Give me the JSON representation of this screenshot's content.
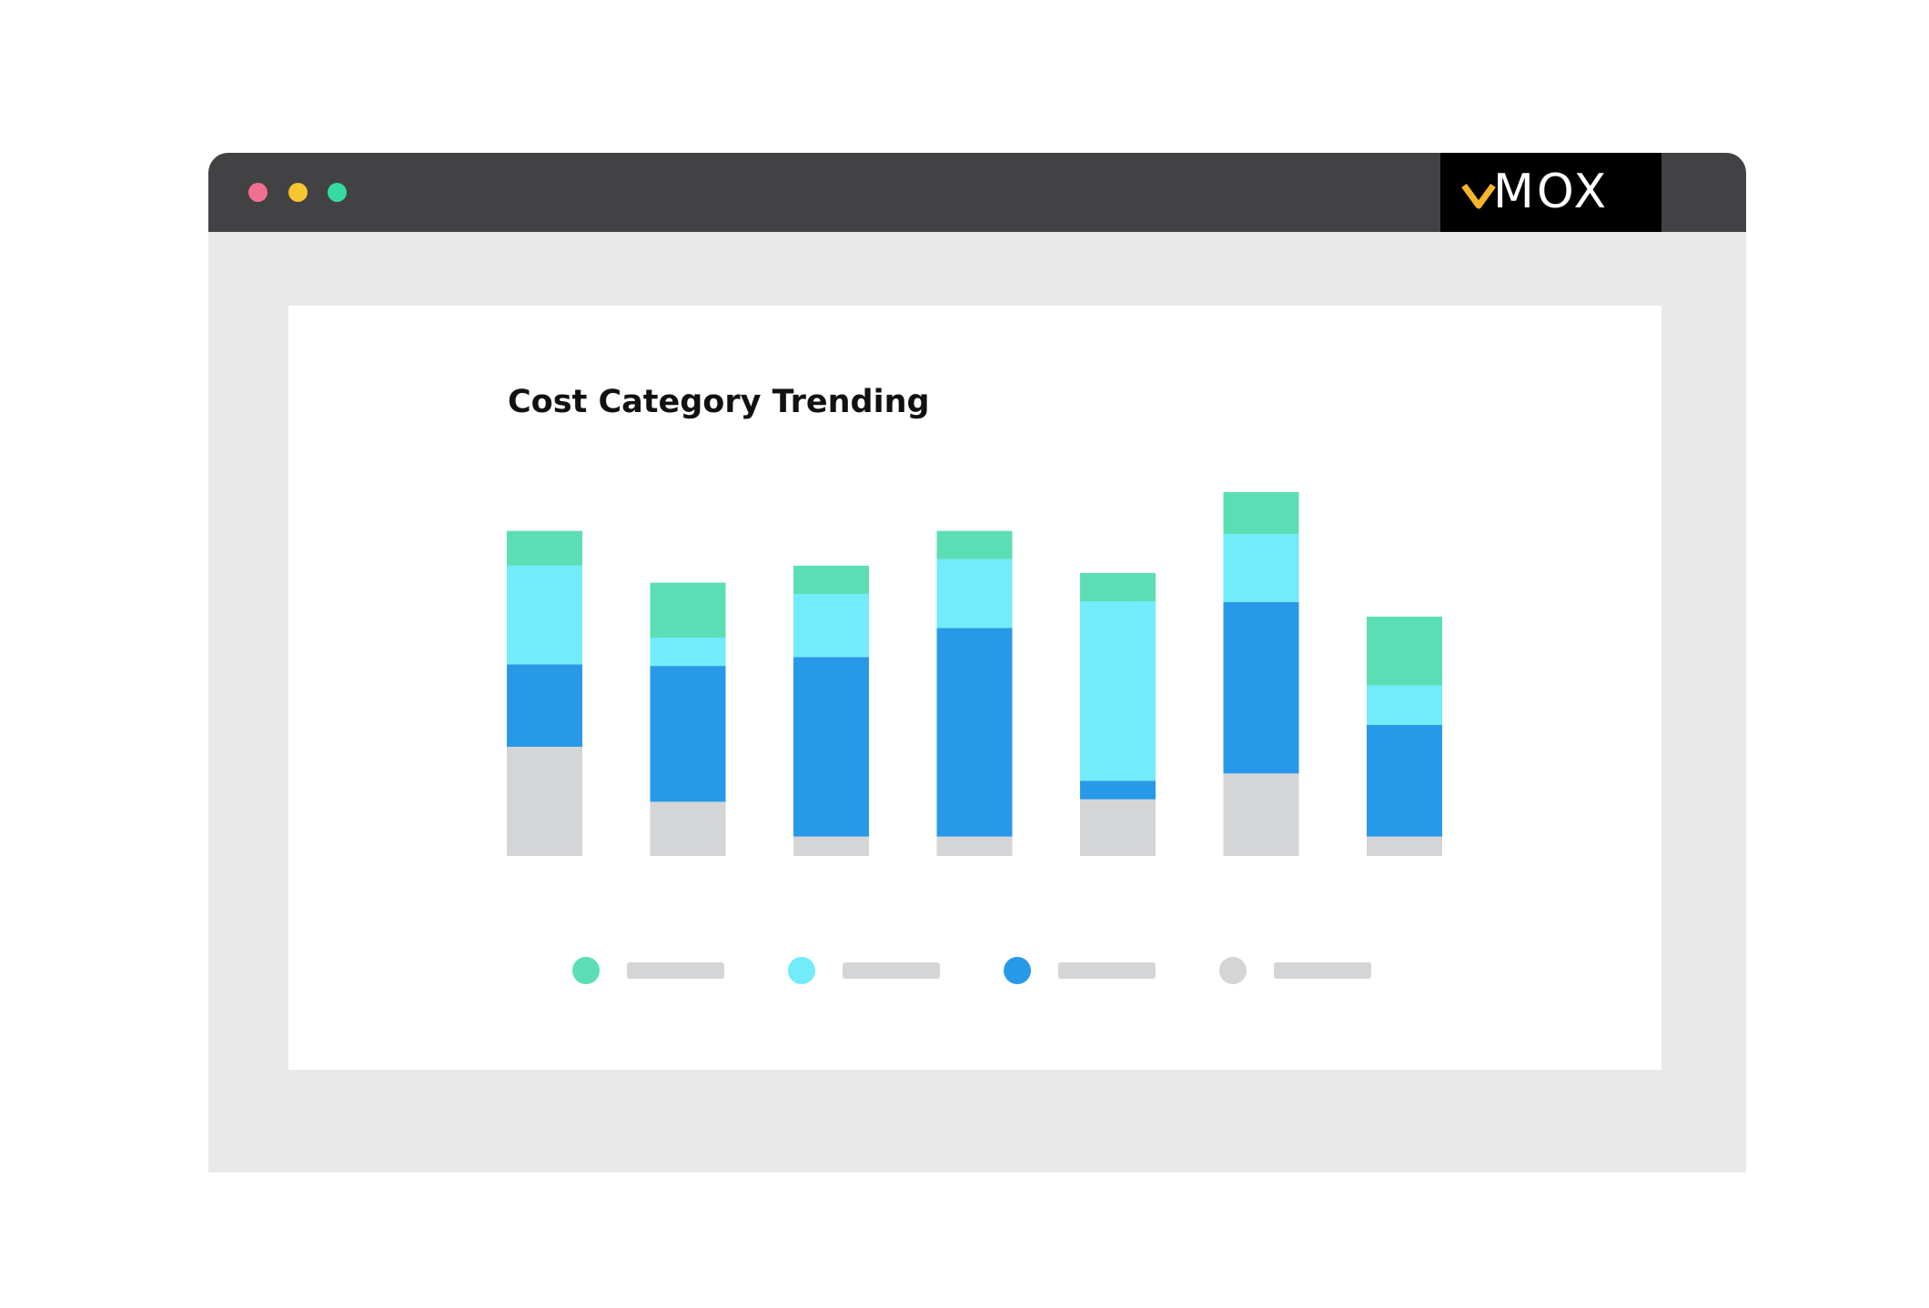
{
  "window": {
    "controls": [
      "close",
      "minimize",
      "maximize"
    ],
    "control_colors": [
      "#f2708f",
      "#f7c52d",
      "#34dba3"
    ]
  },
  "brand": {
    "logo_text": "MOX",
    "accent_color": "#f7b52c"
  },
  "chart_data": {
    "type": "bar",
    "stacked": true,
    "title": "Cost Category Trending",
    "xlabel": "",
    "ylabel": "",
    "ylim": [
      0,
      450
    ],
    "grid": false,
    "axes_visible": false,
    "legend": "bottom",
    "categories": [
      "",
      "",
      "",
      "",
      "",
      "",
      ""
    ],
    "series": [
      {
        "color": "#d4d5d7",
        "values": [
          135,
          67,
          24,
          24,
          70,
          102,
          24
        ]
      },
      {
        "color": "#2899e8",
        "values": [
          102,
          168,
          222,
          258,
          23,
          212,
          138
        ]
      },
      {
        "color": "#72ebfb",
        "values": [
          122,
          35,
          78,
          85,
          222,
          84,
          49
        ]
      },
      {
        "color": "#5cdeb5",
        "values": [
          43,
          68,
          35,
          35,
          35,
          52,
          85
        ]
      }
    ]
  }
}
